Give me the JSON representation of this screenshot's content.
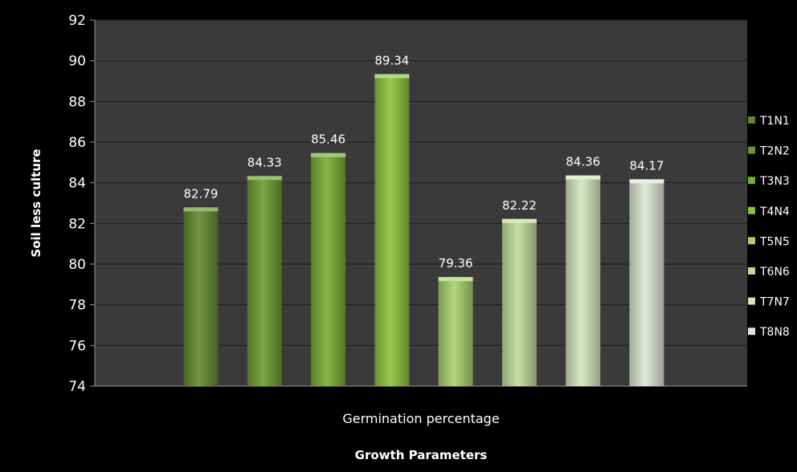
{
  "chart_data": {
    "type": "bar",
    "categories": [
      "Germination percentage"
    ],
    "series": [
      {
        "name": "T1N1",
        "values": [
          82.79
        ],
        "color": "#5f8a2a"
      },
      {
        "name": "T2N2",
        "values": [
          84.33
        ],
        "color": "#6a9a2e"
      },
      {
        "name": "T3N3",
        "values": [
          85.46
        ],
        "color": "#78ab33"
      },
      {
        "name": "T4N4",
        "values": [
          89.34
        ],
        "color": "#8cc23c"
      },
      {
        "name": "T5N5",
        "values": [
          79.36
        ],
        "color": "#a8d26a"
      },
      {
        "name": "T6N6",
        "values": [
          82.22
        ],
        "color": "#c0dc98"
      },
      {
        "name": "T7N7",
        "values": [
          84.36
        ],
        "color": "#d4e6bc"
      },
      {
        "name": "T8N8",
        "values": [
          84.17
        ],
        "color": "#dde6d4"
      }
    ],
    "data_labels": [
      "82.79",
      "84.33",
      "85.46",
      "89.34",
      "79.36",
      "82.22",
      "84.36",
      "84.17"
    ],
    "title": "",
    "xlabel": "Growth Parameters",
    "ylabel": "Soil less culture",
    "ylim": [
      74,
      92
    ],
    "yticks": [
      74,
      76,
      78,
      80,
      82,
      84,
      86,
      88,
      90,
      92
    ],
    "grid": true,
    "legend": "right",
    "colors": {
      "background": "#000000",
      "plot_area": "#3a3a3a",
      "gridline": "#202020",
      "text": "#ffffff"
    }
  }
}
